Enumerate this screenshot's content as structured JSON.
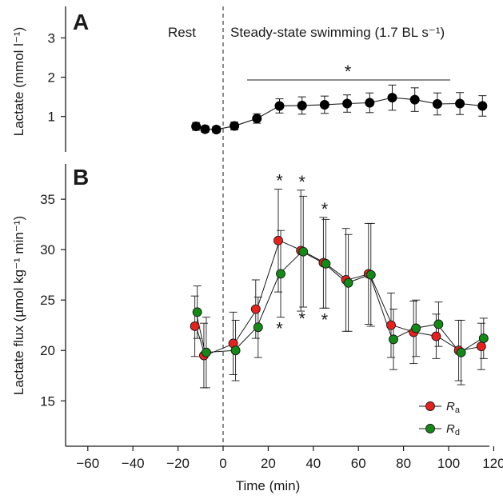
{
  "chart_data": [
    {
      "panel": "A",
      "type": "line",
      "ylabel": "Lactate (mmol l⁻¹)",
      "ylim": [
        0.1,
        3.8
      ],
      "yticks": [
        1,
        2,
        3
      ],
      "x": [
        -12,
        -8,
        -3,
        5,
        15,
        25,
        35,
        45,
        55,
        65,
        75,
        85,
        95,
        105,
        115
      ],
      "series": [
        {
          "name": "",
          "color": "#000000",
          "values": [
            0.75,
            0.68,
            0.67,
            0.76,
            0.95,
            1.27,
            1.28,
            1.3,
            1.33,
            1.35,
            1.48,
            1.43,
            1.32,
            1.33,
            1.27
          ],
          "errors": [
            0.1,
            0.08,
            0.08,
            0.1,
            0.12,
            0.18,
            0.22,
            0.22,
            0.22,
            0.25,
            0.32,
            0.3,
            0.28,
            0.28,
            0.26
          ]
        }
      ],
      "annotations": {
        "rest": "Rest",
        "swim": "Steady-state swimming (1.7 BL s⁻¹)",
        "significance": "*"
      }
    },
    {
      "panel": "B",
      "type": "line",
      "xlabel": "Time (min)",
      "ylabel": "Lactate flux (µmol kg⁻¹ min⁻¹)",
      "xlim": [
        -78,
        130
      ],
      "xticks": [
        -60,
        -40,
        -20,
        0,
        20,
        40,
        60,
        80,
        100,
        120
      ],
      "ylim": [
        10.5,
        38.5
      ],
      "yticks": [
        15,
        20,
        25,
        30,
        35
      ],
      "x": [
        -12,
        -8,
        5,
        15,
        25,
        35,
        45,
        55,
        65,
        75,
        85,
        95,
        105,
        115
      ],
      "series": [
        {
          "name": "R",
          "subscript": "a",
          "color": "#e8211d",
          "values": [
            22.4,
            19.5,
            20.7,
            24.1,
            30.9,
            29.9,
            28.7,
            27.0,
            27.6,
            22.5,
            21.8,
            21.4,
            20.0,
            20.4
          ],
          "errors": [
            3.0,
            3.2,
            3.1,
            2.9,
            5.1,
            6.0,
            4.5,
            5.1,
            5.0,
            3.2,
            3.1,
            2.2,
            3.0,
            2.3
          ]
        },
        {
          "name": "R",
          "subscript": "d",
          "color": "#138a15",
          "values": [
            23.8,
            19.8,
            20.0,
            22.3,
            27.6,
            29.8,
            28.6,
            26.7,
            27.5,
            21.1,
            22.2,
            22.6,
            19.8,
            21.2
          ],
          "errors": [
            2.6,
            3.5,
            3.0,
            3.0,
            4.3,
            5.5,
            4.4,
            4.8,
            5.1,
            3.0,
            2.8,
            2.2,
            3.2,
            2.0
          ]
        }
      ],
      "significance_above": [
        25,
        35,
        45
      ],
      "significance_below": [
        25,
        35,
        45
      ],
      "significance_mark": "*"
    }
  ]
}
